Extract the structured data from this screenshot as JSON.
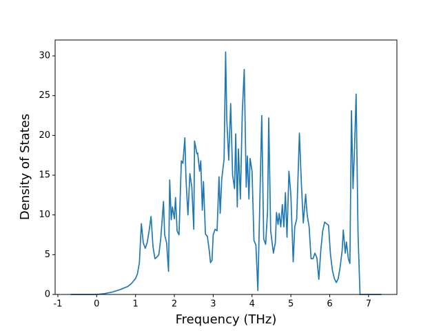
{
  "chart_data": {
    "type": "line",
    "x_label": "Frequency (THz)",
    "y_label": "Density of States",
    "xlim": [
      -1.07,
      7.73
    ],
    "ylim": [
      0,
      32
    ],
    "xticks": [
      -1,
      0,
      1,
      2,
      3,
      4,
      5,
      6,
      7
    ],
    "yticks": [
      0,
      5,
      10,
      15,
      20,
      25,
      30
    ],
    "x": [
      -0.67,
      0,
      0.2,
      0.4,
      0.6,
      0.8,
      0.9,
      1.0,
      1.05,
      1.1,
      1.15,
      1.2,
      1.25,
      1.3,
      1.35,
      1.4,
      1.45,
      1.5,
      1.55,
      1.6,
      1.65,
      1.72,
      1.75,
      1.8,
      1.85,
      1.88,
      1.92,
      1.95,
      2.0,
      2.03,
      2.07,
      2.12,
      2.18,
      2.22,
      2.27,
      2.3,
      2.35,
      2.4,
      2.45,
      2.5,
      2.52,
      2.58,
      2.6,
      2.65,
      2.68,
      2.72,
      2.75,
      2.8,
      2.85,
      2.9,
      2.93,
      2.97,
      3.0,
      3.05,
      3.1,
      3.15,
      3.18,
      3.22,
      3.28,
      3.32,
      3.35,
      3.4,
      3.45,
      3.5,
      3.55,
      3.58,
      3.62,
      3.65,
      3.7,
      3.75,
      3.8,
      3.85,
      3.88,
      3.92,
      3.95,
      4.0,
      4.05,
      4.1,
      4.15,
      4.25,
      4.3,
      4.35,
      4.4,
      4.43,
      4.48,
      4.55,
      4.6,
      4.63,
      4.67,
      4.7,
      4.74,
      4.78,
      4.82,
      4.86,
      4.9,
      4.95,
      5.0,
      5.06,
      5.1,
      5.15,
      5.22,
      5.27,
      5.32,
      5.38,
      5.42,
      5.47,
      5.52,
      5.57,
      5.62,
      5.67,
      5.72,
      5.77,
      5.82,
      5.87,
      5.92,
      5.97,
      6.02,
      6.07,
      6.12,
      6.17,
      6.22,
      6.27,
      6.32,
      6.35,
      6.4,
      6.43,
      6.48,
      6.52,
      6.56,
      6.6,
      6.64,
      6.68,
      6.73,
      6.78,
      7.33
    ],
    "series": [
      {
        "color": "#1f77b4",
        "values": [
          0,
          0,
          0.1,
          0.3,
          0.6,
          1.0,
          1.4,
          2.0,
          2.6,
          4.0,
          8.9,
          6.5,
          5.8,
          6.5,
          8.0,
          9.8,
          6.0,
          4.5,
          4.7,
          5.0,
          7.0,
          11.7,
          7.5,
          6.5,
          2.9,
          14.4,
          9.4,
          11.0,
          9.5,
          12.2,
          8.0,
          7.5,
          16.8,
          16.5,
          19.7,
          14.5,
          10.0,
          15.2,
          13.5,
          8.2,
          19.3,
          17.7,
          17.8,
          15.5,
          16.8,
          10.6,
          14.2,
          7.6,
          7.3,
          5.5,
          4.0,
          4.3,
          7.5,
          8.2,
          8.0,
          14.8,
          10.2,
          14.5,
          17.0,
          30.5,
          22.0,
          16.9,
          24.0,
          15.0,
          13.3,
          20.2,
          11.0,
          18.3,
          12.0,
          23.0,
          28.3,
          13.5,
          17.4,
          12.0,
          17.1,
          15.5,
          6.8,
          6.2,
          0.5,
          22.5,
          7.0,
          6.3,
          10.5,
          22.2,
          8.0,
          5.2,
          6.5,
          10.3,
          8.8,
          10.2,
          8.5,
          11.3,
          8.5,
          12.8,
          7.2,
          15.5,
          12.5,
          4.1,
          8.5,
          9.5,
          20.3,
          14.0,
          9.0,
          12.6,
          10.0,
          8.5,
          4.5,
          4.5,
          5.2,
          4.6,
          1.9,
          5.5,
          8.0,
          9.1,
          8.9,
          8.7,
          5.0,
          3.0,
          2.0,
          1.5,
          2.0,
          3.5,
          5.5,
          8.1,
          5.2,
          6.6,
          4.5,
          3.9,
          23.1,
          13.3,
          18.5,
          25.2,
          7.5,
          0,
          0
        ]
      }
    ]
  }
}
